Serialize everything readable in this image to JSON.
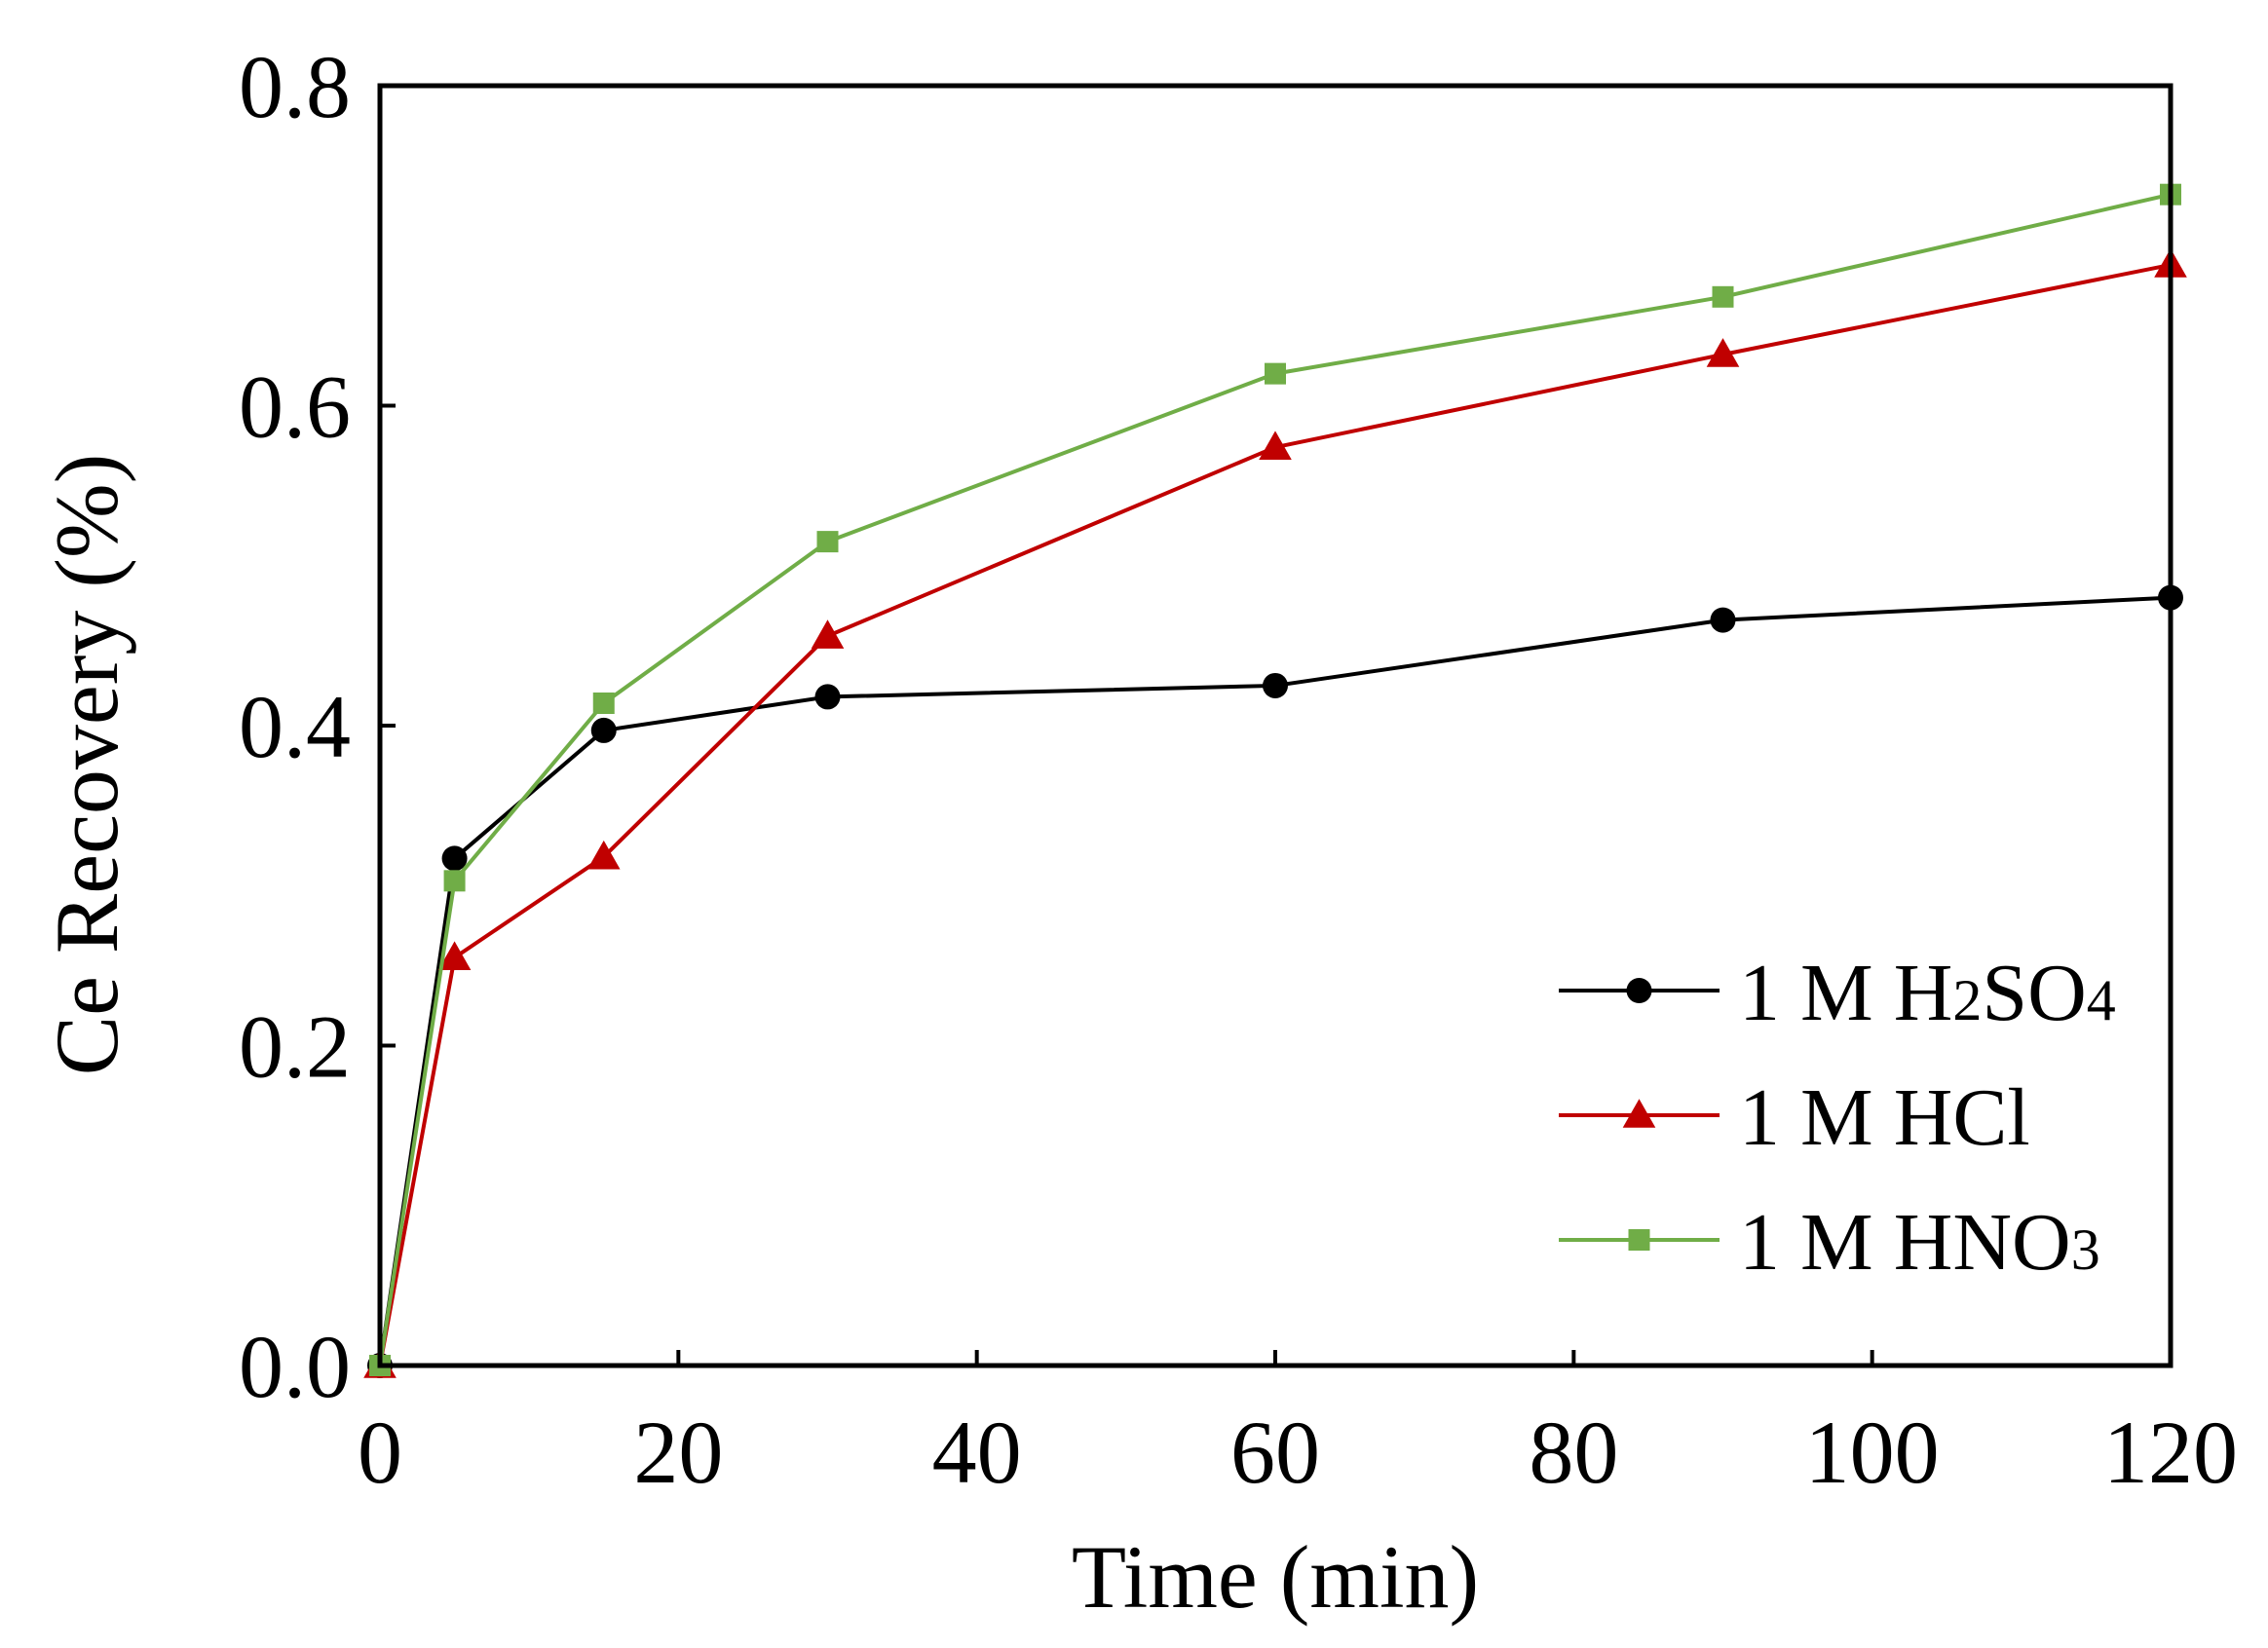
{
  "chart_data": {
    "type": "line",
    "title": "",
    "xlabel": "Time (min)",
    "ylabel": "Ce Recovery (%)",
    "xlim": [
      0,
      120
    ],
    "ylim": [
      0,
      0.8
    ],
    "x_ticks": [
      0,
      20,
      40,
      60,
      80,
      100,
      120
    ],
    "x_tick_labels": [
      "0",
      "20",
      "40",
      "60",
      "80",
      "100",
      "120"
    ],
    "y_ticks": [
      0,
      0.2,
      0.4,
      0.6,
      0.8
    ],
    "y_tick_labels": [
      "0.0",
      "0.2",
      "0.4",
      "0.6",
      "0.8"
    ],
    "grid": false,
    "legend_position": "bottom-right",
    "x": [
      0,
      5,
      15,
      30,
      60,
      90,
      120
    ],
    "series": [
      {
        "name": "1 M H2SO4",
        "legend_parts": [
          "1 M H",
          "2",
          "SO",
          "4"
        ],
        "color": "#000000",
        "marker": "circle",
        "values": [
          0,
          0.317,
          0.397,
          0.418,
          0.425,
          0.466,
          0.48
        ]
      },
      {
        "name": "1 M HCl",
        "legend_parts": [
          "1 M HCl",
          "",
          "",
          ""
        ],
        "color": "#c00000",
        "marker": "triangle",
        "values": [
          0,
          0.255,
          0.318,
          0.456,
          0.574,
          0.632,
          0.688
        ]
      },
      {
        "name": "1 M HNO3",
        "legend_parts": [
          "1 M HNO",
          "3",
          "",
          ""
        ],
        "color": "#70ad47",
        "marker": "square",
        "values": [
          0,
          0.303,
          0.414,
          0.515,
          0.62,
          0.668,
          0.732
        ]
      }
    ]
  }
}
